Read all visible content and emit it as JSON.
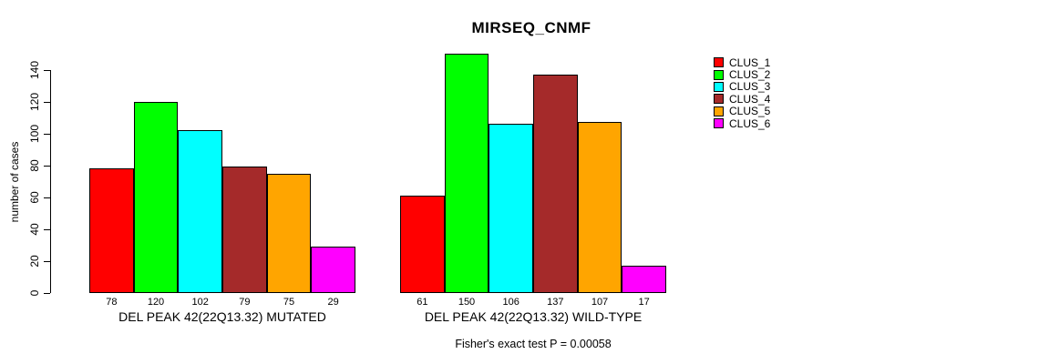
{
  "title": "MIRSEQ_CNMF",
  "footer": "Fisher's exact test P = 0.00058",
  "chart_data": {
    "type": "bar",
    "title": "MIRSEQ_CNMF",
    "xlabel": "",
    "ylabel": "number of cases",
    "ylim": [
      0,
      150
    ],
    "yticks": [
      0,
      20,
      40,
      60,
      80,
      100,
      120,
      140
    ],
    "grid": false,
    "legend_position": "right",
    "series_names": [
      "CLUS_1",
      "CLUS_2",
      "CLUS_3",
      "CLUS_4",
      "CLUS_5",
      "CLUS_6"
    ],
    "series_colors": [
      "#FF0000",
      "#00FF00",
      "#00FFFF",
      "#A52A2A",
      "#FFA500",
      "#FF00FF"
    ],
    "groups": [
      {
        "label": "DEL PEAK 42(22Q13.32) MUTATED",
        "values": [
          78,
          120,
          102,
          79,
          75,
          29
        ]
      },
      {
        "label": "DEL PEAK 42(22Q13.32) WILD-TYPE",
        "values": [
          61,
          150,
          106,
          137,
          107,
          17
        ]
      }
    ],
    "annotation": "Fisher's exact test P = 0.00058"
  },
  "legend": {
    "items": [
      {
        "label": "CLUS_1",
        "color": "#FF0000"
      },
      {
        "label": "CLUS_2",
        "color": "#00FF00"
      },
      {
        "label": "CLUS_3",
        "color": "#00FFFF"
      },
      {
        "label": "CLUS_4",
        "color": "#A52A2A"
      },
      {
        "label": "CLUS_5",
        "color": "#FFA500"
      },
      {
        "label": "CLUS_6",
        "color": "#FF00FF"
      }
    ]
  }
}
